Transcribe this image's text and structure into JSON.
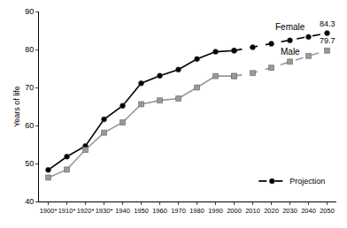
{
  "chart_data": {
    "type": "line",
    "y_label": "Years of life",
    "categories": [
      "1900*",
      "1910*",
      "1920*",
      "1930*",
      "1940",
      "1950",
      "1960",
      "1970",
      "1980",
      "1990",
      "2000",
      "2010",
      "2020",
      "2030",
      "2040",
      "2050"
    ],
    "series": [
      {
        "name": "Female",
        "color": "#000000",
        "marker": "circle",
        "line_style": "solid",
        "showlegend": false,
        "values": [
          48.3,
          51.8,
          54.6,
          61.6,
          65.2,
          71.1,
          73.1,
          74.7,
          77.5,
          79.4,
          79.7,
          null,
          null,
          null,
          null,
          null
        ]
      },
      {
        "name": "Male",
        "color": "#999999",
        "marker": "square",
        "line_style": "solid",
        "showlegend": false,
        "values": [
          46.3,
          48.4,
          53.6,
          58.1,
          60.8,
          65.6,
          66.6,
          67.1,
          70.0,
          73.0,
          73.0,
          null,
          null,
          null,
          null,
          null
        ]
      },
      {
        "name": "Projection",
        "color": "#000000",
        "marker": "circle",
        "line_style": "dashed",
        "showlegend": true,
        "values": [
          null,
          null,
          null,
          null,
          null,
          null,
          null,
          null,
          null,
          null,
          79.7,
          80.6,
          81.5,
          82.4,
          83.3,
          84.3
        ],
        "value_labels": [
          null,
          null,
          null,
          null,
          null,
          null,
          null,
          null,
          null,
          null,
          null,
          null,
          null,
          null,
          null,
          "84.3"
        ]
      },
      {
        "name": "Projection",
        "color": "#999999",
        "marker": "square",
        "line_style": "dashed",
        "showlegend": false,
        "values": [
          null,
          null,
          null,
          null,
          null,
          null,
          null,
          null,
          null,
          null,
          73.0,
          73.8,
          75.2,
          76.8,
          78.3,
          79.7
        ],
        "value_labels": [
          null,
          null,
          null,
          null,
          null,
          null,
          null,
          null,
          null,
          null,
          null,
          null,
          null,
          null,
          null,
          "79.7"
        ]
      }
    ],
    "annotations": [
      {
        "text": "Female",
        "x": "2030",
        "y": 86
      },
      {
        "text": "Male",
        "x": "2030",
        "y": 79.5
      }
    ],
    "ylim": [
      40,
      90
    ],
    "yticks": [
      40,
      50,
      60,
      70,
      80,
      90
    ],
    "grid": false,
    "legend": "bottom right"
  }
}
